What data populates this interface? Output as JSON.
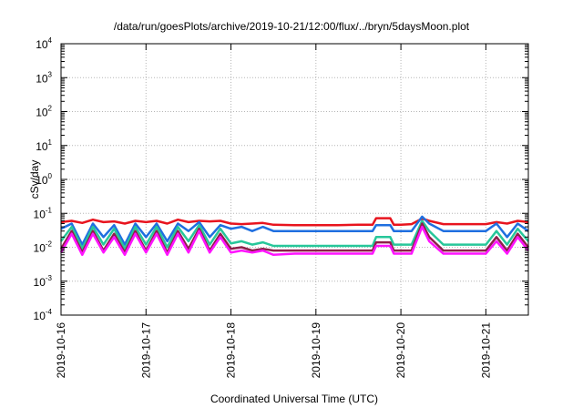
{
  "chart_data": {
    "type": "line",
    "title": "/data/run/goesPlots/archive/2019-10-21/12:00/flux/../bryn/5daysMoon.plot",
    "xlabel": "Coordinated Universal Time (UTC)",
    "ylabel": "cSv/day",
    "yscale": "log",
    "ylim": [
      0.0001,
      10000
    ],
    "y_tick_base": "10",
    "y_ticks": [
      {
        "value": 0.0001,
        "exponent": "-4"
      },
      {
        "value": 0.001,
        "exponent": "-3"
      },
      {
        "value": 0.01,
        "exponent": "-2"
      },
      {
        "value": 0.1,
        "exponent": "-1"
      },
      {
        "value": 1,
        "exponent": "0"
      },
      {
        "value": 10,
        "exponent": "1"
      },
      {
        "value": 100,
        "exponent": "2"
      },
      {
        "value": 1000,
        "exponent": "3"
      },
      {
        "value": 10000,
        "exponent": "4"
      }
    ],
    "xlim": [
      "2019-10-16T00:00",
      "2019-10-21T12:00"
    ],
    "x_ticks": [
      "2019-10-16",
      "2019-10-17",
      "2019-10-18",
      "2019-10-19",
      "2019-10-20",
      "2019-10-21"
    ],
    "grid": true,
    "legend": "none",
    "series": [
      {
        "color": "#e8141e",
        "values": [
          [
            "2019-10-16T00:00",
            0.055
          ],
          [
            "2019-10-16T03:00",
            0.06
          ],
          [
            "2019-10-16T06:00",
            0.052
          ],
          [
            "2019-10-16T09:00",
            0.065
          ],
          [
            "2019-10-16T12:00",
            0.055
          ],
          [
            "2019-10-16T15:00",
            0.058
          ],
          [
            "2019-10-16T18:00",
            0.05
          ],
          [
            "2019-10-16T21:00",
            0.06
          ],
          [
            "2019-10-17T00:00",
            0.055
          ],
          [
            "2019-10-17T03:00",
            0.06
          ],
          [
            "2019-10-17T06:00",
            0.05
          ],
          [
            "2019-10-17T09:00",
            0.065
          ],
          [
            "2019-10-17T12:00",
            0.055
          ],
          [
            "2019-10-17T15:00",
            0.06
          ],
          [
            "2019-10-17T18:00",
            0.058
          ],
          [
            "2019-10-17T21:00",
            0.06
          ],
          [
            "2019-10-18T00:00",
            0.05
          ],
          [
            "2019-10-18T03:00",
            0.048
          ],
          [
            "2019-10-18T06:00",
            0.05
          ],
          [
            "2019-10-18T09:00",
            0.052
          ],
          [
            "2019-10-18T12:00",
            0.046
          ],
          [
            "2019-10-18T18:00",
            0.045
          ],
          [
            "2019-10-19T00:00",
            0.045
          ],
          [
            "2019-10-19T06:00",
            0.045
          ],
          [
            "2019-10-19T12:00",
            0.046
          ],
          [
            "2019-10-19T16:00",
            0.046
          ],
          [
            "2019-10-19T17:00",
            0.072
          ],
          [
            "2019-10-19T21:00",
            0.072
          ],
          [
            "2019-10-19T22:00",
            0.046
          ],
          [
            "2019-10-20T00:00",
            0.046
          ],
          [
            "2019-10-20T03:00",
            0.048
          ],
          [
            "2019-10-20T06:00",
            0.07
          ],
          [
            "2019-10-20T08:00",
            0.06
          ],
          [
            "2019-10-20T12:00",
            0.048
          ],
          [
            "2019-10-20T18:00",
            0.048
          ],
          [
            "2019-10-21T00:00",
            0.048
          ],
          [
            "2019-10-21T03:00",
            0.055
          ],
          [
            "2019-10-21T06:00",
            0.05
          ],
          [
            "2019-10-21T09:00",
            0.06
          ],
          [
            "2019-10-21T12:00",
            0.055
          ]
        ]
      },
      {
        "color": "#1f6fe0",
        "values": [
          [
            "2019-10-16T00:00",
            0.035
          ],
          [
            "2019-10-16T03:00",
            0.05
          ],
          [
            "2019-10-16T06:00",
            0.012
          ],
          [
            "2019-10-16T09:00",
            0.05
          ],
          [
            "2019-10-16T12:00",
            0.02
          ],
          [
            "2019-10-16T15:00",
            0.045
          ],
          [
            "2019-10-16T18:00",
            0.012
          ],
          [
            "2019-10-16T21:00",
            0.05
          ],
          [
            "2019-10-17T00:00",
            0.02
          ],
          [
            "2019-10-17T03:00",
            0.05
          ],
          [
            "2019-10-17T06:00",
            0.015
          ],
          [
            "2019-10-17T09:00",
            0.05
          ],
          [
            "2019-10-17T12:00",
            0.03
          ],
          [
            "2019-10-17T15:00",
            0.055
          ],
          [
            "2019-10-17T18:00",
            0.02
          ],
          [
            "2019-10-17T21:00",
            0.045
          ],
          [
            "2019-10-18T00:00",
            0.035
          ],
          [
            "2019-10-18T03:00",
            0.04
          ],
          [
            "2019-10-18T06:00",
            0.03
          ],
          [
            "2019-10-18T09:00",
            0.04
          ],
          [
            "2019-10-18T12:00",
            0.03
          ],
          [
            "2019-10-18T18:00",
            0.03
          ],
          [
            "2019-10-19T00:00",
            0.03
          ],
          [
            "2019-10-19T06:00",
            0.03
          ],
          [
            "2019-10-19T12:00",
            0.03
          ],
          [
            "2019-10-19T16:00",
            0.03
          ],
          [
            "2019-10-19T17:00",
            0.045
          ],
          [
            "2019-10-19T21:00",
            0.045
          ],
          [
            "2019-10-19T22:00",
            0.03
          ],
          [
            "2019-10-20T00:00",
            0.03
          ],
          [
            "2019-10-20T03:00",
            0.03
          ],
          [
            "2019-10-20T06:00",
            0.08
          ],
          [
            "2019-10-20T08:00",
            0.05
          ],
          [
            "2019-10-20T12:00",
            0.03
          ],
          [
            "2019-10-20T18:00",
            0.03
          ],
          [
            "2019-10-21T00:00",
            0.03
          ],
          [
            "2019-10-21T03:00",
            0.05
          ],
          [
            "2019-10-21T06:00",
            0.02
          ],
          [
            "2019-10-21T09:00",
            0.05
          ],
          [
            "2019-10-21T12:00",
            0.03
          ]
        ]
      },
      {
        "color": "#27c79a",
        "values": [
          [
            "2019-10-16T00:00",
            0.015
          ],
          [
            "2019-10-16T03:00",
            0.04
          ],
          [
            "2019-10-16T06:00",
            0.009
          ],
          [
            "2019-10-16T09:00",
            0.04
          ],
          [
            "2019-10-16T12:00",
            0.012
          ],
          [
            "2019-10-16T15:00",
            0.035
          ],
          [
            "2019-10-16T18:00",
            0.009
          ],
          [
            "2019-10-16T21:00",
            0.04
          ],
          [
            "2019-10-17T00:00",
            0.012
          ],
          [
            "2019-10-17T03:00",
            0.04
          ],
          [
            "2019-10-17T06:00",
            0.01
          ],
          [
            "2019-10-17T09:00",
            0.04
          ],
          [
            "2019-10-17T12:00",
            0.015
          ],
          [
            "2019-10-17T15:00",
            0.045
          ],
          [
            "2019-10-17T18:00",
            0.012
          ],
          [
            "2019-10-17T21:00",
            0.035
          ],
          [
            "2019-10-18T00:00",
            0.013
          ],
          [
            "2019-10-18T03:00",
            0.015
          ],
          [
            "2019-10-18T06:00",
            0.012
          ],
          [
            "2019-10-18T09:00",
            0.014
          ],
          [
            "2019-10-18T12:00",
            0.011
          ],
          [
            "2019-10-18T18:00",
            0.011
          ],
          [
            "2019-10-19T00:00",
            0.011
          ],
          [
            "2019-10-19T06:00",
            0.011
          ],
          [
            "2019-10-19T12:00",
            0.011
          ],
          [
            "2019-10-19T16:00",
            0.011
          ],
          [
            "2019-10-19T17:00",
            0.02
          ],
          [
            "2019-10-19T21:00",
            0.02
          ],
          [
            "2019-10-19T22:00",
            0.012
          ],
          [
            "2019-10-20T00:00",
            0.012
          ],
          [
            "2019-10-20T03:00",
            0.012
          ],
          [
            "2019-10-20T06:00",
            0.06
          ],
          [
            "2019-10-20T08:00",
            0.03
          ],
          [
            "2019-10-20T12:00",
            0.012
          ],
          [
            "2019-10-20T18:00",
            0.012
          ],
          [
            "2019-10-21T00:00",
            0.012
          ],
          [
            "2019-10-21T03:00",
            0.03
          ],
          [
            "2019-10-21T06:00",
            0.012
          ],
          [
            "2019-10-21T09:00",
            0.035
          ],
          [
            "2019-10-21T12:00",
            0.015
          ]
        ]
      },
      {
        "color": "#8e1f4a",
        "values": [
          [
            "2019-10-16T00:00",
            0.009
          ],
          [
            "2019-10-16T03:00",
            0.03
          ],
          [
            "2019-10-16T06:00",
            0.007
          ],
          [
            "2019-10-16T09:00",
            0.03
          ],
          [
            "2019-10-16T12:00",
            0.008
          ],
          [
            "2019-10-16T15:00",
            0.025
          ],
          [
            "2019-10-16T18:00",
            0.007
          ],
          [
            "2019-10-16T21:00",
            0.03
          ],
          [
            "2019-10-17T00:00",
            0.008
          ],
          [
            "2019-10-17T03:00",
            0.03
          ],
          [
            "2019-10-17T06:00",
            0.007
          ],
          [
            "2019-10-17T09:00",
            0.03
          ],
          [
            "2019-10-17T12:00",
            0.009
          ],
          [
            "2019-10-17T15:00",
            0.035
          ],
          [
            "2019-10-17T18:00",
            0.008
          ],
          [
            "2019-10-17T21:00",
            0.025
          ],
          [
            "2019-10-18T00:00",
            0.009
          ],
          [
            "2019-10-18T03:00",
            0.01
          ],
          [
            "2019-10-18T06:00",
            0.008
          ],
          [
            "2019-10-18T09:00",
            0.009
          ],
          [
            "2019-10-18T12:00",
            0.008
          ],
          [
            "2019-10-18T18:00",
            0.008
          ],
          [
            "2019-10-19T00:00",
            0.008
          ],
          [
            "2019-10-19T06:00",
            0.008
          ],
          [
            "2019-10-19T12:00",
            0.008
          ],
          [
            "2019-10-19T16:00",
            0.008
          ],
          [
            "2019-10-19T17:00",
            0.014
          ],
          [
            "2019-10-19T21:00",
            0.014
          ],
          [
            "2019-10-19T22:00",
            0.008
          ],
          [
            "2019-10-20T00:00",
            0.008
          ],
          [
            "2019-10-20T03:00",
            0.008
          ],
          [
            "2019-10-20T06:00",
            0.05
          ],
          [
            "2019-10-20T08:00",
            0.02
          ],
          [
            "2019-10-20T12:00",
            0.008
          ],
          [
            "2019-10-20T18:00",
            0.008
          ],
          [
            "2019-10-21T00:00",
            0.008
          ],
          [
            "2019-10-21T03:00",
            0.02
          ],
          [
            "2019-10-21T06:00",
            0.008
          ],
          [
            "2019-10-21T09:00",
            0.025
          ],
          [
            "2019-10-21T12:00",
            0.01
          ]
        ]
      },
      {
        "color": "#ff14ff",
        "values": [
          [
            "2019-10-16T00:00",
            0.007
          ],
          [
            "2019-10-16T03:00",
            0.025
          ],
          [
            "2019-10-16T06:00",
            0.006
          ],
          [
            "2019-10-16T09:00",
            0.025
          ],
          [
            "2019-10-16T12:00",
            0.007
          ],
          [
            "2019-10-16T15:00",
            0.02
          ],
          [
            "2019-10-16T18:00",
            0.006
          ],
          [
            "2019-10-16T21:00",
            0.025
          ],
          [
            "2019-10-17T00:00",
            0.007
          ],
          [
            "2019-10-17T03:00",
            0.025
          ],
          [
            "2019-10-17T06:00",
            0.006
          ],
          [
            "2019-10-17T09:00",
            0.025
          ],
          [
            "2019-10-17T12:00",
            0.007
          ],
          [
            "2019-10-17T15:00",
            0.03
          ],
          [
            "2019-10-17T18:00",
            0.007
          ],
          [
            "2019-10-17T21:00",
            0.02
          ],
          [
            "2019-10-18T00:00",
            0.007
          ],
          [
            "2019-10-18T03:00",
            0.008
          ],
          [
            "2019-10-18T06:00",
            0.007
          ],
          [
            "2019-10-18T09:00",
            0.008
          ],
          [
            "2019-10-18T12:00",
            0.006
          ],
          [
            "2019-10-18T18:00",
            0.0065
          ],
          [
            "2019-10-19T00:00",
            0.0065
          ],
          [
            "2019-10-19T06:00",
            0.0065
          ],
          [
            "2019-10-19T12:00",
            0.0065
          ],
          [
            "2019-10-19T16:00",
            0.0065
          ],
          [
            "2019-10-19T17:00",
            0.011
          ],
          [
            "2019-10-19T21:00",
            0.011
          ],
          [
            "2019-10-19T22:00",
            0.0065
          ],
          [
            "2019-10-20T00:00",
            0.0065
          ],
          [
            "2019-10-20T03:00",
            0.0065
          ],
          [
            "2019-10-20T06:00",
            0.04
          ],
          [
            "2019-10-20T08:00",
            0.015
          ],
          [
            "2019-10-20T12:00",
            0.0065
          ],
          [
            "2019-10-20T18:00",
            0.0065
          ],
          [
            "2019-10-21T00:00",
            0.0065
          ],
          [
            "2019-10-21T03:00",
            0.015
          ],
          [
            "2019-10-21T06:00",
            0.0065
          ],
          [
            "2019-10-21T09:00",
            0.02
          ],
          [
            "2019-10-21T12:00",
            0.008
          ]
        ]
      }
    ]
  }
}
